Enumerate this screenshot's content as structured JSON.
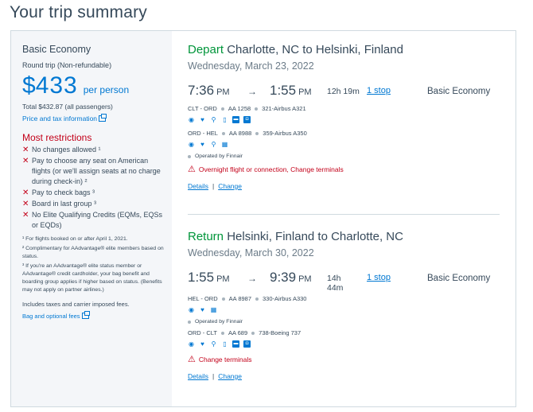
{
  "page_title": "Your trip summary",
  "sidebar": {
    "fare_name": "Basic Economy",
    "trip_type": "Round trip (Non-refundable)",
    "price_symbol": "$",
    "price_amount": "433",
    "price_per": "per person",
    "total": "Total $432.87 (all passengers)",
    "price_tax_link": "Price and tax information",
    "restrictions_title": "Most restrictions",
    "restrictions": [
      "No changes allowed ¹",
      "Pay to choose any seat on American flights (or we'll assign seats at no charge during check-in) ²",
      "Pay to check bags ³",
      "Board in last group ³",
      "No Elite Qualifying Credits (EQMs, EQSs or EQDs)"
    ],
    "footnotes": [
      "¹ For flights booked on or after April 1, 2021.",
      "² Complimentary for AAdvantage® elite members based on status.",
      "³ If you're an AAdvantage® elite status member or AAdvantage® credit cardholder, your bag benefit and boarding group applies if higher based on status. (Benefits may not apply on partner airlines.)"
    ],
    "includes": "Includes taxes and carrier imposed fees.",
    "bag_link": "Bag and optional fees"
  },
  "depart": {
    "direction": "Depart",
    "route": "Charlotte, NC to Helsinki, Finland",
    "date": "Wednesday, March 23, 2022",
    "dep_time": "7:36",
    "dep_ampm": "PM",
    "arrow": "→",
    "arr_time": "1:55",
    "arr_ampm": "PM",
    "duration": "12h 19m",
    "stops": "1 stop",
    "cabin": "Basic Economy",
    "legs": [
      {
        "route": "CLT - ORD",
        "flight": "AA 1258",
        "aircraft": "321-Airbus A321"
      },
      {
        "route": "ORD - HEL",
        "flight": "AA 8988",
        "aircraft": "359-Airbus A350"
      }
    ],
    "operated": "Operated by Finnair",
    "warning": "Overnight flight or connection, Change terminals",
    "details_link": "Details",
    "sep": "|",
    "change_link": "Change"
  },
  "return": {
    "direction": "Return",
    "route": "Helsinki, Finland to Charlotte, NC",
    "date": "Wednesday, March 30, 2022",
    "dep_time": "1:55",
    "dep_ampm": "PM",
    "arrow": "→",
    "arr_time": "9:39",
    "arr_ampm": "PM",
    "duration_h": "14h",
    "duration_m": "44m",
    "stops": "1 stop",
    "cabin": "Basic Economy",
    "legs": [
      {
        "route": "HEL - ORD",
        "flight": "AA 8987",
        "aircraft": "330-Airbus A330"
      },
      {
        "route": "ORD - CLT",
        "flight": "AA 689",
        "aircraft": "738-Boeing 737"
      }
    ],
    "operated": "Operated by Finnair",
    "warning": "Change terminals",
    "details_link": "Details",
    "sep": "|",
    "change_link": "Change"
  },
  "colors": {
    "accent": "#0078d2",
    "alert": "#c30019",
    "go": "#00953a"
  }
}
